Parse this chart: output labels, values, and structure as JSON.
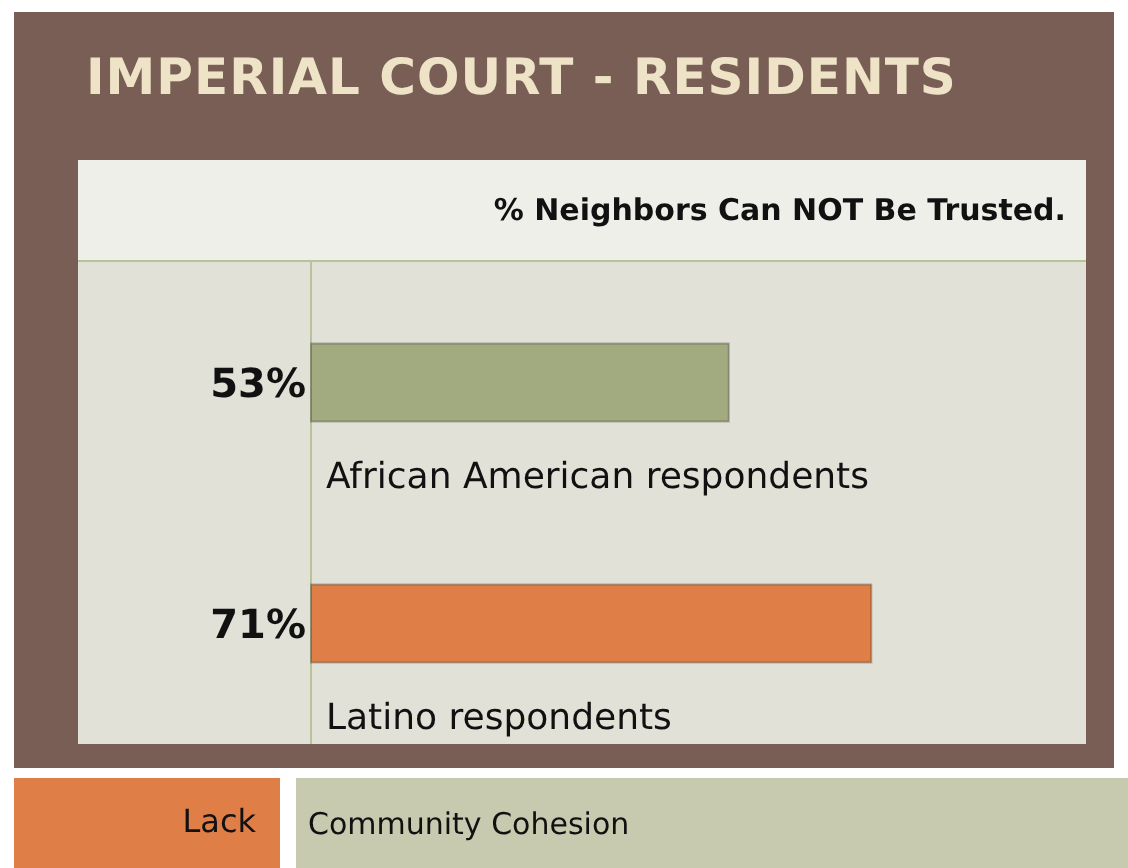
{
  "chart_data": {
    "type": "bar",
    "orientation": "horizontal",
    "title": "IMPERIAL COURT - RESIDENTS",
    "subtitle": "% Neighbors Can NOT Be Trusted.",
    "categories": [
      "African American respondents",
      "Latino respondents"
    ],
    "values": [
      53,
      71
    ],
    "colors": [
      "#a2aa7f",
      "#df7f47"
    ],
    "value_labels": [
      "53%",
      "71%"
    ],
    "annotations": [
      "Lack",
      "Community Cohesion"
    ]
  }
}
